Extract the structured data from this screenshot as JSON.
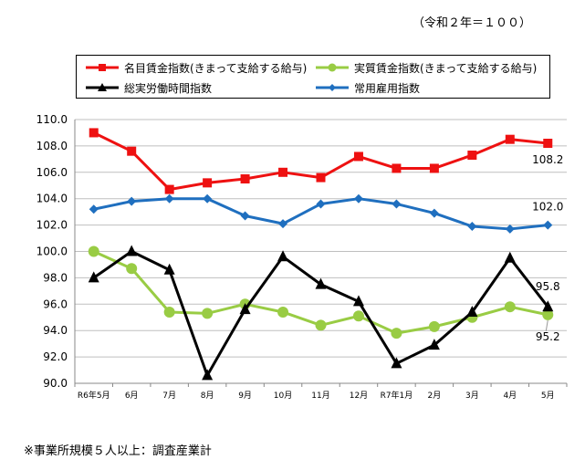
{
  "basis_note": "（令和２年＝１００）",
  "footnote": "※事業所規模５人以上：調査産業計",
  "colors": {
    "nominal": "#ee1111",
    "real": "#99cc44",
    "hours": "#000000",
    "employment": "#1f6fbf"
  },
  "chart_data": {
    "type": "line",
    "title": "",
    "xlabel": "",
    "ylabel": "",
    "ylim": [
      90.0,
      110.0
    ],
    "y_ticks": [
      "110.0",
      "108.0",
      "106.0",
      "104.0",
      "102.0",
      "100.0",
      "98.0",
      "96.0",
      "94.0",
      "92.0",
      "90.0"
    ],
    "grid": "horizontal",
    "legend_placement": "top",
    "categories": [
      "R6年5月",
      "6月",
      "7月",
      "8月",
      "9月",
      "10月",
      "11月",
      "12月",
      "R7年1月",
      "2月",
      "3月",
      "4月",
      "5月"
    ],
    "series": [
      {
        "name": "名目賃金指数(きまって支給する給与)",
        "color_key": "nominal",
        "marker": "square",
        "values": [
          109.0,
          107.6,
          104.7,
          105.2,
          105.5,
          106.0,
          105.6,
          107.2,
          106.3,
          106.3,
          107.3,
          108.5,
          108.2
        ],
        "end_label": "108.2"
      },
      {
        "name": "実質賃金指数(きまって支給する給与)",
        "color_key": "real",
        "marker": "circle",
        "values": [
          100.0,
          98.7,
          95.4,
          95.3,
          96.0,
          95.4,
          94.4,
          95.1,
          93.8,
          94.3,
          95.0,
          95.8,
          95.2
        ],
        "end_label": "95.2"
      },
      {
        "name": "総実労働時間指数",
        "color_key": "hours",
        "marker": "triangle",
        "values": [
          98.0,
          100.0,
          98.6,
          90.6,
          95.6,
          99.6,
          97.5,
          96.2,
          91.5,
          92.9,
          95.4,
          99.5,
          95.8
        ],
        "end_label": "95.8"
      },
      {
        "name": "常用雇用指数",
        "color_key": "employment",
        "marker": "diamond",
        "values": [
          103.2,
          103.8,
          104.0,
          104.0,
          102.7,
          102.1,
          103.6,
          104.0,
          103.6,
          102.9,
          101.9,
          101.7,
          102.0
        ],
        "end_label": "102.0"
      }
    ]
  }
}
